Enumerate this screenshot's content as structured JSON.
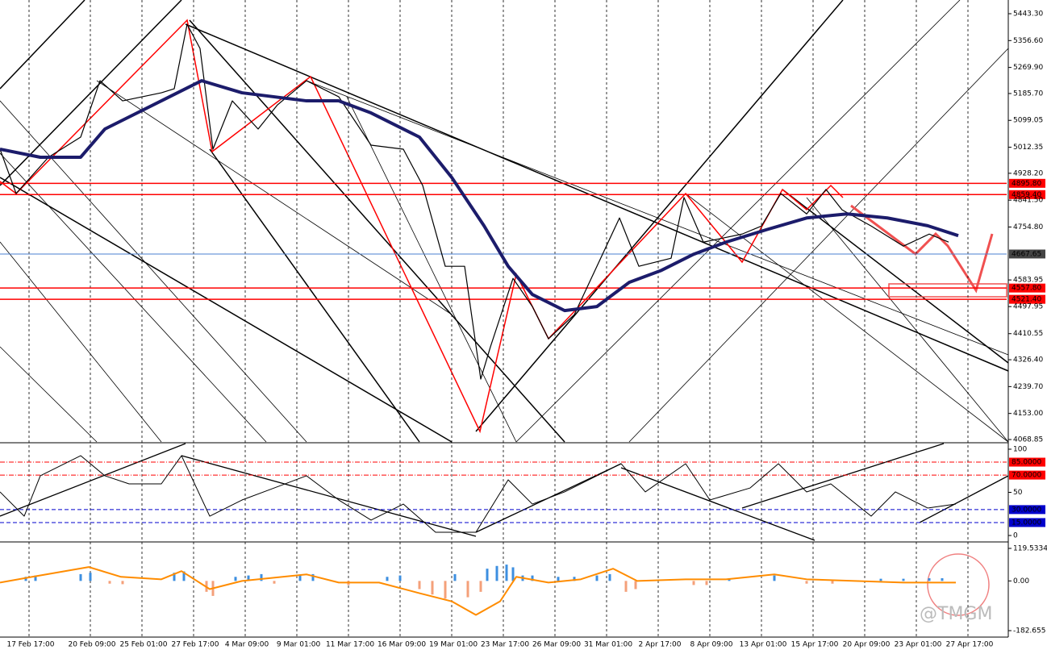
{
  "watermark": "@TMGM",
  "chart_data": [
    {
      "type": "line",
      "xlim": [
        0,
        312
      ],
      "xticks": [
        {
          "value": 9,
          "label": "17 Feb 17:00"
        },
        {
          "value": 28,
          "label": "20 Feb 09:00"
        },
        {
          "value": 44,
          "label": "25 Feb 01:00"
        },
        {
          "value": 60,
          "label": "27 Feb 17:00"
        },
        {
          "value": 76,
          "label": "4 Mar 09:00"
        },
        {
          "value": 92,
          "label": "9 Mar 01:00"
        },
        {
          "value": 108,
          "label": "11 Mar 17:00"
        },
        {
          "value": 124,
          "label": "16 Mar 09:00"
        },
        {
          "value": 140,
          "label": "19 Mar 01:00"
        },
        {
          "value": 156,
          "label": "23 Mar 17:00"
        },
        {
          "value": 172,
          "label": "26 Mar 09:00"
        },
        {
          "value": 188,
          "label": "31 Mar 01:00"
        },
        {
          "value": 204,
          "label": "2 Apr 17:00"
        },
        {
          "value": 220,
          "label": "8 Apr 09:00"
        },
        {
          "value": 236,
          "label": "13 Apr 01:00"
        },
        {
          "value": 252,
          "label": "15 Apr 17:00"
        },
        {
          "value": 268,
          "label": "20 Apr 09:00"
        },
        {
          "value": 284,
          "label": "23 Apr 01:00"
        },
        {
          "value": 300,
          "label": "27 Apr 17:00"
        }
      ],
      "ylim": [
        4068.85,
        5443.3
      ],
      "yticks": [
        {
          "value": 5443.3,
          "label": "5443.30"
        },
        {
          "value": 5356.6,
          "label": "5356.60"
        },
        {
          "value": 5269.9,
          "label": "5269.90"
        },
        {
          "value": 5185.7,
          "label": "5185.70"
        },
        5099.05,
        5012.35,
        {
          "value": 4928.2,
          "label": "4928.20"
        },
        {
          "value": 4841.5,
          "label": "4841.50"
        },
        {
          "value": 4754.8,
          "label": "4754.80"
        },
        4583.95,
        4497.95,
        4410.55,
        {
          "value": 4326.4,
          "label": "4326.40"
        },
        {
          "value": 4239.7,
          "label": "4239.70"
        },
        {
          "value": 4153,
          "label": "4153.00"
        },
        4068.85
      ],
      "levels": [
        {
          "value": 4895.8,
          "label": "4895.80",
          "color": "#ff0000"
        },
        {
          "value": 4859.4,
          "label": "4859.40",
          "color": "#ff0000"
        },
        {
          "value": 4667.65,
          "label": "4667.65",
          "color": "#4a7fd0",
          "label_color": "#444444"
        },
        {
          "value": 4557.8,
          "label": "4557.80",
          "color": "#ff0000"
        },
        {
          "value": 4521.4,
          "label": "4521.40",
          "color": "#ff0000"
        }
      ],
      "series": [
        {
          "color": "#000000",
          "width": 1.2,
          "x": [
            0,
            5,
            15,
            25,
            31,
            38,
            50,
            54,
            58,
            62,
            66,
            72,
            80,
            86,
            95,
            105,
            115,
            125,
            131,
            138,
            144,
            149,
            152,
            159,
            165,
            170,
            178,
            185,
            192,
            198,
            208,
            212,
            218,
            230,
            236,
            242,
            250,
            256,
            261,
            270,
            280,
            288,
            294
          ],
          "values": [
            5006,
            4863,
            4980,
            5045,
            5227,
            5162,
            5188,
            5201,
            5409,
            5331,
            5006,
            5162,
            5071,
            5149,
            5227,
            5175,
            5019,
            5006,
            4889,
            4628,
            4628,
            4264,
            4368,
            4589,
            4498,
            4394,
            4472,
            4628,
            4784,
            4628,
            4654,
            4850,
            4706,
            4732,
            4758,
            4863,
            4797,
            4876,
            4810,
            4758,
            4693,
            4732,
            4706
          ]
        },
        {
          "color": "#1c1c6b",
          "width": 4,
          "x": [
            0,
            12.5,
            25,
            32.5,
            50,
            62.5,
            75,
            85,
            95,
            105,
            115,
            130,
            140,
            150,
            157.5,
            165,
            175,
            185,
            195,
            205,
            215,
            225,
            237.5,
            250,
            262.5,
            275,
            287.5,
            297
          ],
          "values": [
            5006,
            4980,
            4980,
            5071,
            5162,
            5227,
            5188,
            5175,
            5162,
            5162,
            5123,
            5045,
            4915,
            4759,
            4628,
            4537,
            4485,
            4498,
            4576,
            4615,
            4667,
            4706,
            4746,
            4784,
            4797,
            4784,
            4759,
            4727
          ]
        }
      ]
    },
    {
      "type": "line",
      "ylim": [
        0,
        100
      ],
      "yticks": [
        0,
        50,
        100
      ],
      "levels": [
        {
          "value": 85,
          "label": "85.0000",
          "color": "#ff0000"
        },
        {
          "value": 70,
          "label": "70.0000",
          "color": "#ff0000"
        },
        {
          "value": 30,
          "label": "30.0000",
          "color": "#0000cc"
        },
        {
          "value": 15,
          "label": "15.0000",
          "color": "#0000cc"
        }
      ],
      "series": [
        {
          "color": "#000000",
          "width": 1,
          "x": [
            0,
            7.5,
            12.5,
            25,
            32.5,
            40,
            50,
            56.25,
            65,
            75,
            85,
            95,
            105,
            115,
            125,
            135,
            147.5,
            157.5,
            165,
            175,
            185,
            192.5,
            200,
            212.5,
            220,
            232.5,
            241.25,
            250,
            257.5,
            270,
            277.5,
            287.5,
            296.25
          ],
          "values": [
            50.5,
            22.4,
            69.2,
            92.5,
            69.2,
            59.8,
            59.8,
            92.5,
            22.4,
            41.1,
            55.1,
            69.2,
            41.1,
            17.8,
            36.4,
            3.7,
            3.7,
            64.5,
            36.4,
            50.5,
            69.2,
            83.2,
            50.5,
            83.2,
            41.1,
            55.1,
            83.2,
            50.5,
            59.8,
            22.4,
            50.5,
            31.8,
            36.4
          ]
        }
      ]
    },
    {
      "type": "bar",
      "ylim": [
        -182.655,
        119.5334
      ],
      "yticks": [
        -182.655,
        {
          "value": 0,
          "label": "0.00"
        },
        119.5334
      ],
      "color_positive": "#3d8fe0",
      "color_negative": "#f4a07a",
      "x": [
        8,
        11,
        25,
        28,
        34,
        38,
        54,
        57,
        64,
        66,
        73,
        77,
        81,
        85,
        93,
        97,
        108,
        120,
        124,
        130,
        134,
        138,
        141,
        145,
        149,
        151,
        154,
        157,
        159,
        162,
        165,
        173,
        178,
        185,
        189,
        194,
        197,
        215,
        219,
        226,
        240,
        250,
        258,
        273,
        280,
        288,
        292
      ],
      "values": [
        15,
        20,
        25,
        30,
        -10,
        -12,
        30,
        35,
        -40,
        -55,
        15,
        20,
        25,
        -10,
        20,
        25,
        -15,
        15,
        20,
        -30,
        -50,
        -65,
        25,
        -60,
        -40,
        45,
        55,
        60,
        50,
        20,
        20,
        15,
        15,
        20,
        25,
        -40,
        -30,
        -15,
        -15,
        10,
        20,
        -10,
        -10,
        8,
        8,
        10,
        10
      ],
      "series": [
        {
          "color": "#ff8c00",
          "width": 2,
          "x": [
            0,
            10,
            27.5,
            37.5,
            50,
            56.25,
            65,
            75,
            95,
            105,
            117.5,
            130,
            140,
            147.5,
            155,
            160,
            170,
            180,
            190,
            197.5,
            212.5,
            225,
            240,
            250,
            265,
            280,
            296.25
          ],
          "values": [
            -6,
            15,
            51,
            15,
            6,
            36,
            -30,
            0,
            24,
            -6,
            -6,
            -45,
            -75,
            -125,
            -75,
            15,
            -6,
            6,
            45,
            0,
            6,
            6,
            24,
            6,
            0,
            -6,
            -6
          ]
        }
      ]
    }
  ]
}
